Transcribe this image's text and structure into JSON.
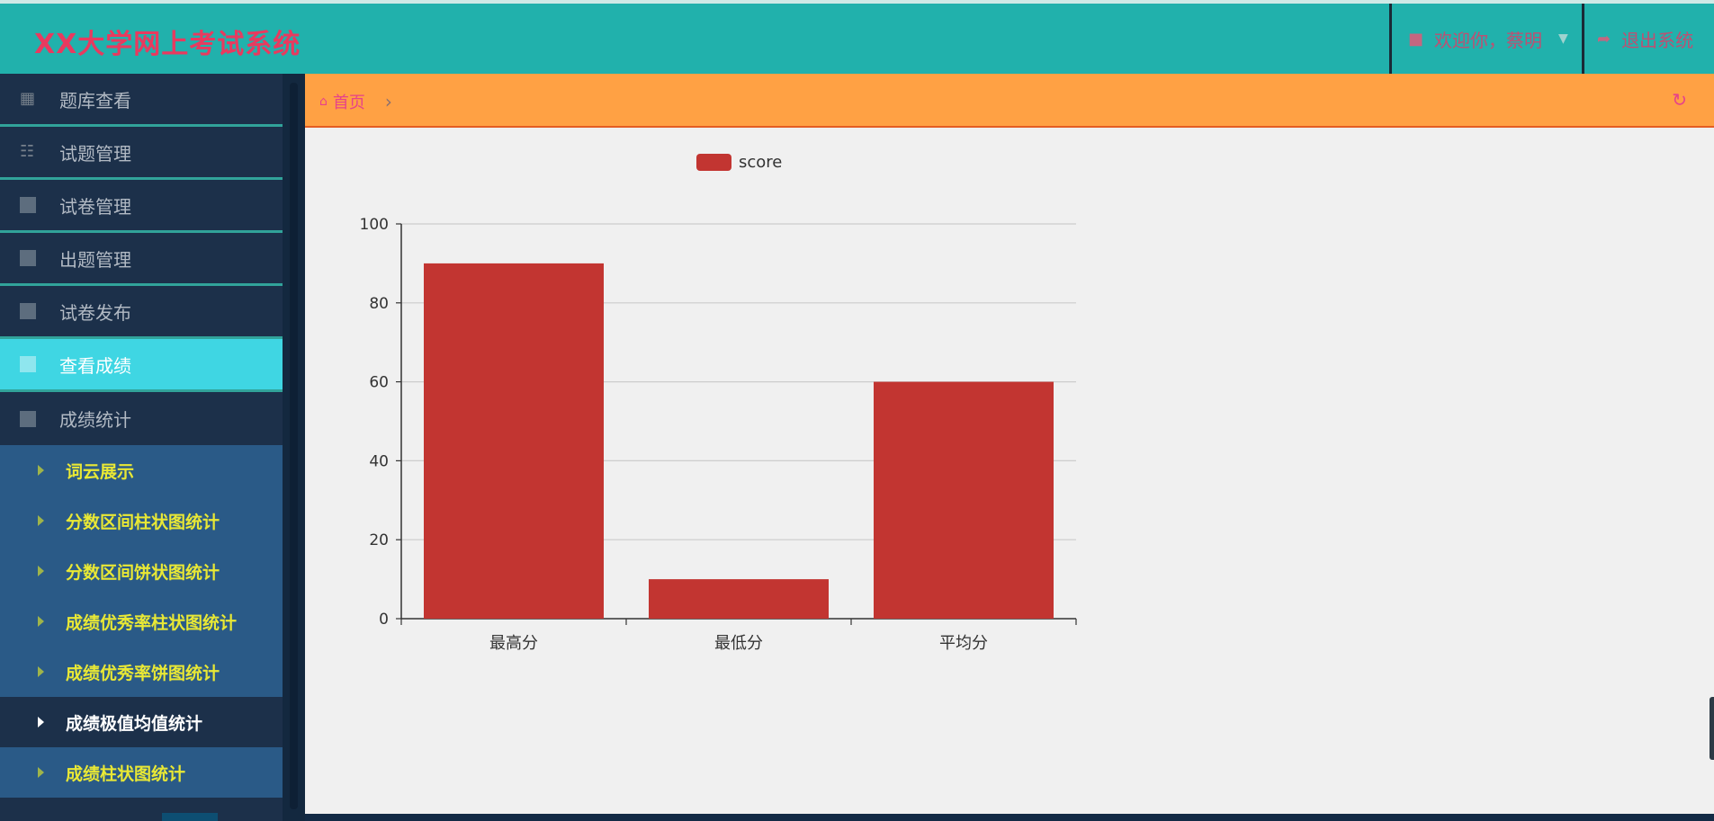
{
  "app": {
    "title": "XX大学网上考试系统"
  },
  "header": {
    "user_label": "欢迎你，蔡明",
    "logout_label": "退出系统"
  },
  "sidebar": {
    "items": [
      {
        "label": "题库查看"
      },
      {
        "label": "试题管理"
      },
      {
        "label": "试卷管理"
      },
      {
        "label": "出题管理"
      },
      {
        "label": "试卷发布"
      },
      {
        "label": "查看成绩"
      },
      {
        "label": "成绩统计"
      }
    ],
    "sub_items": [
      {
        "label": "词云展示"
      },
      {
        "label": "分数区间柱状图统计"
      },
      {
        "label": "分数区间饼状图统计"
      },
      {
        "label": "成绩优秀率柱状图统计"
      },
      {
        "label": "成绩优秀率饼图统计"
      },
      {
        "label": "成绩极值均值统计"
      },
      {
        "label": "成绩柱状图统计"
      }
    ]
  },
  "breadcrumb": {
    "home": "首页"
  },
  "colors": {
    "header": "#21b1ac",
    "brand_text": "#e83a5f",
    "breadcrumb_bar": "#ffa144",
    "active_nav": "#3fd6e3",
    "bar": "#c23531"
  },
  "chart_data": {
    "type": "bar",
    "categories": [
      "最高分",
      "最低分",
      "平均分"
    ],
    "series": [
      {
        "name": "score",
        "values": [
          90,
          10,
          60
        ]
      }
    ],
    "ylim": [
      0,
      100
    ],
    "yticks": [
      0,
      20,
      40,
      60,
      80,
      100
    ],
    "grid": true,
    "legend": "top-center"
  }
}
